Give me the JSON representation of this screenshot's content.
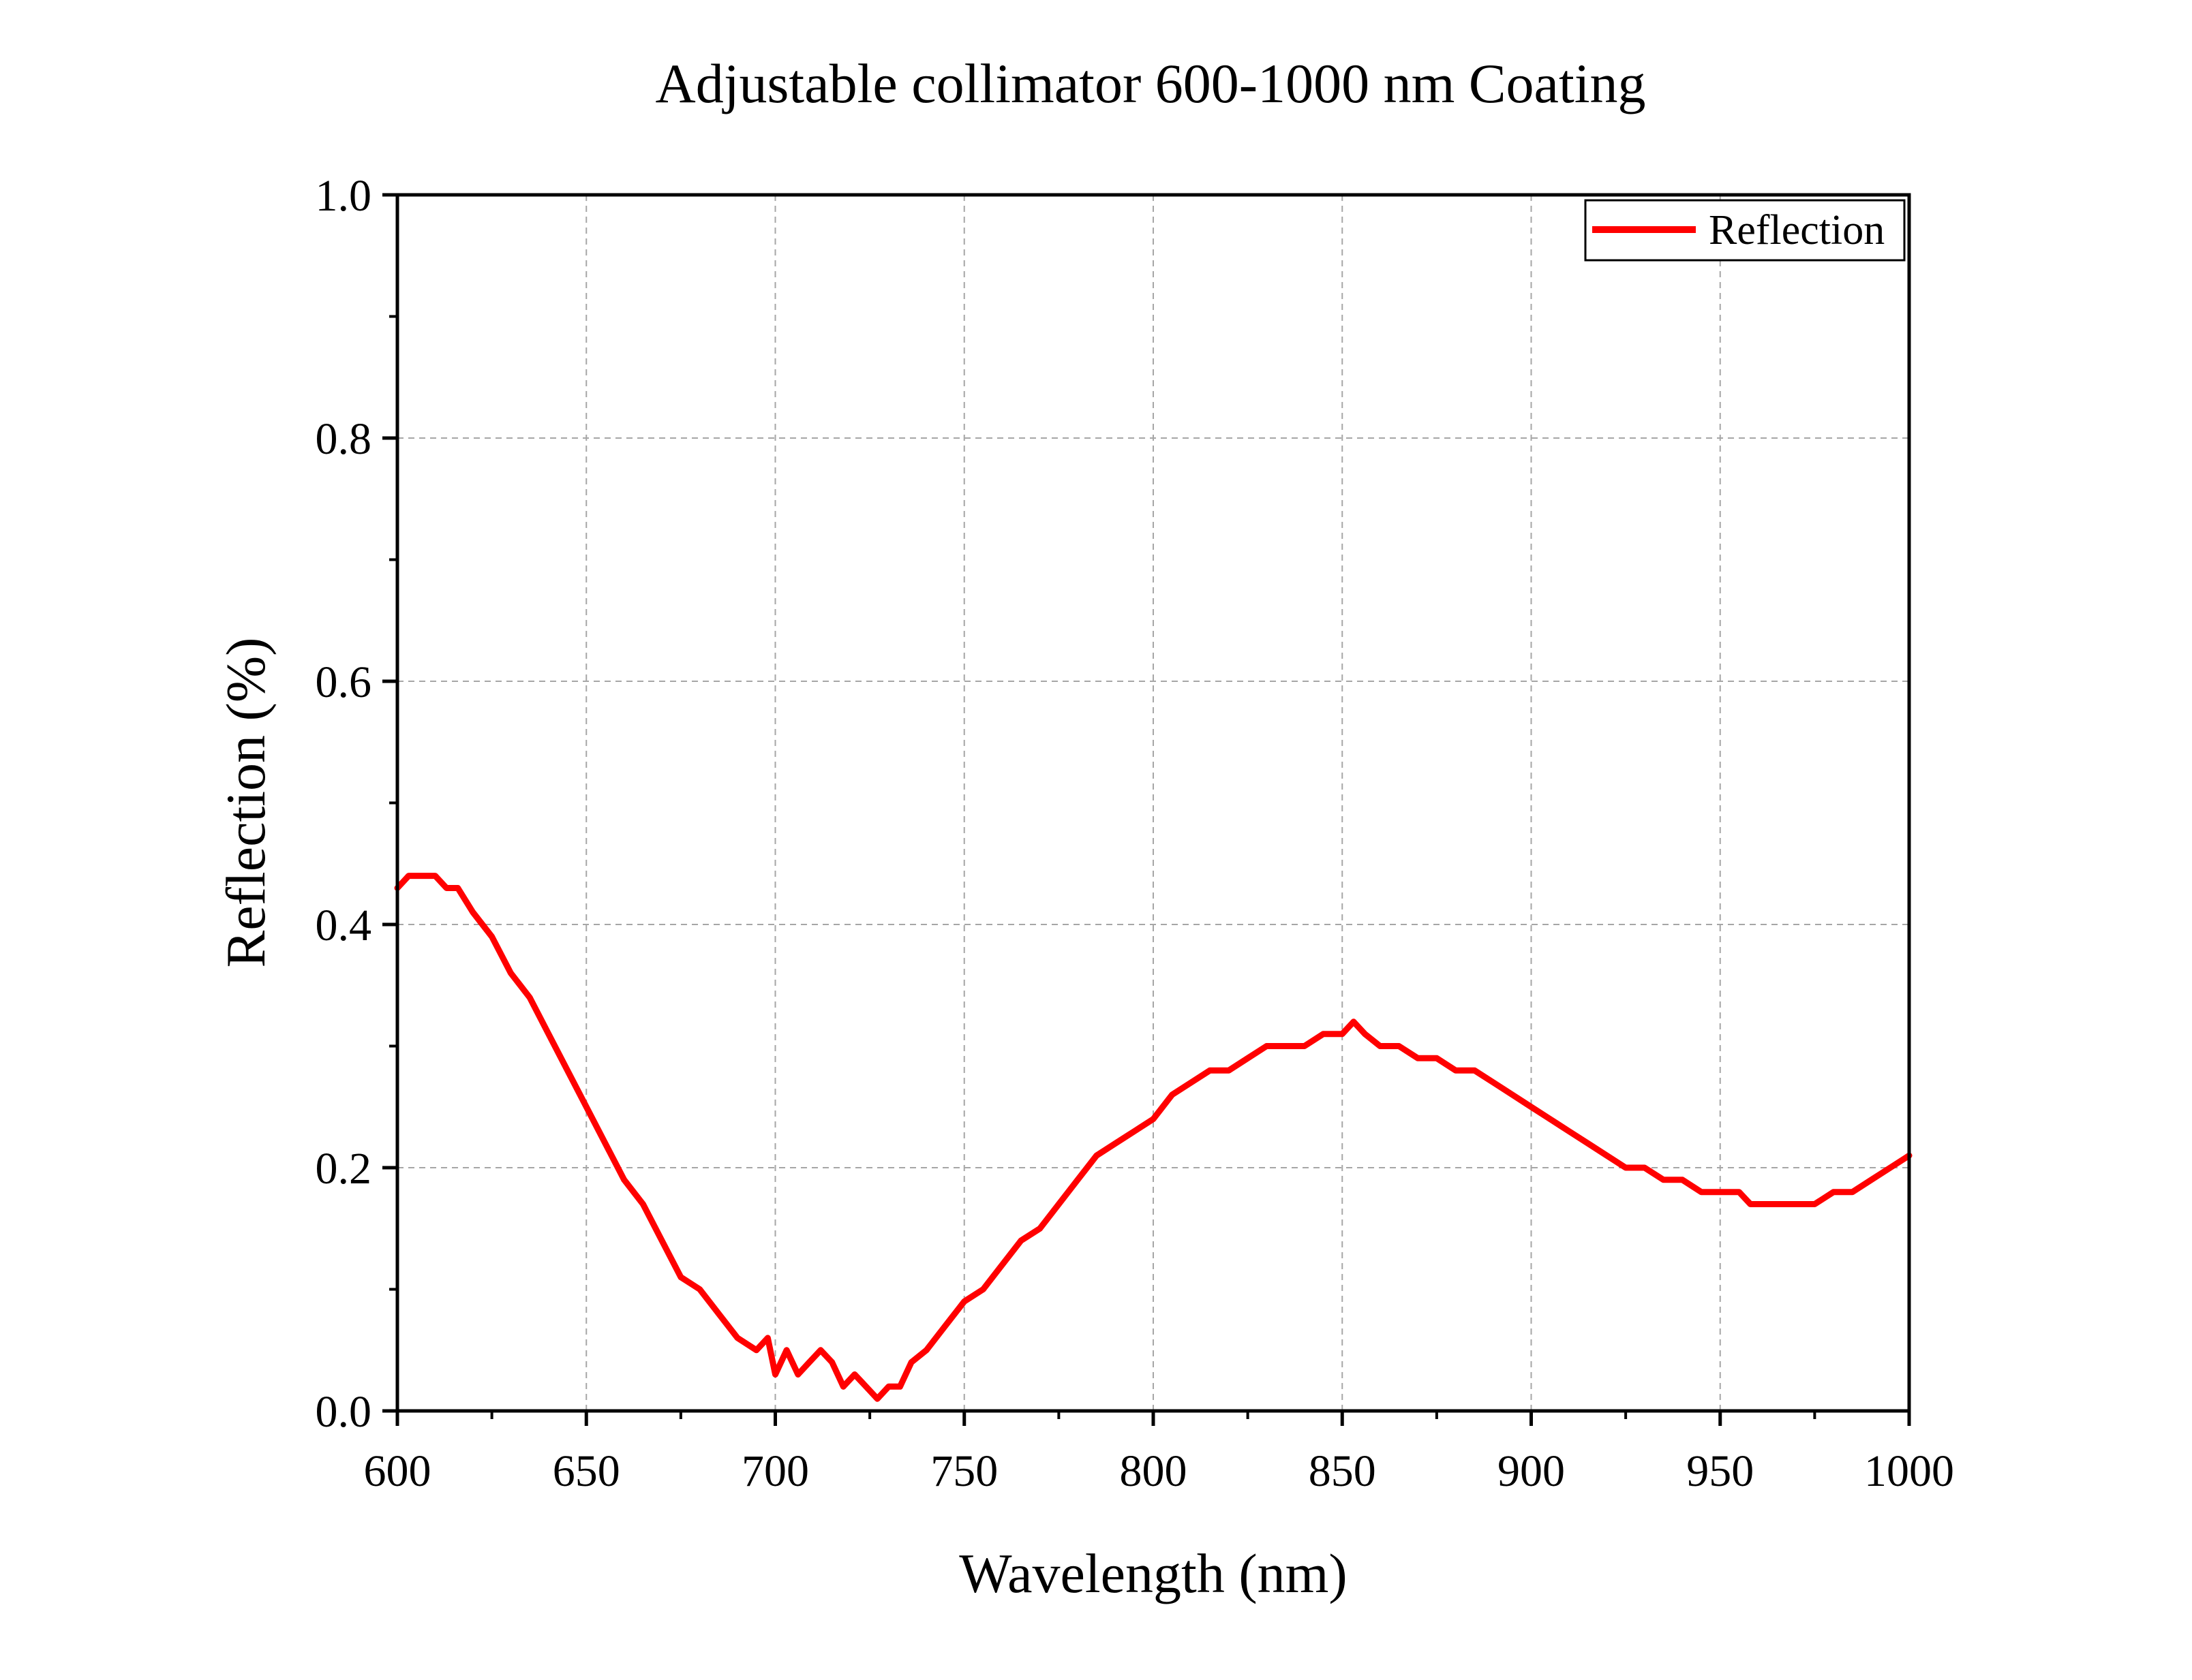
{
  "chart_data": {
    "type": "line",
    "title": "Adjustable collimator 600-1000 nm Coating",
    "xlabel": "Wavelength (nm)",
    "ylabel": "Reflection (%)",
    "xlim": [
      600,
      1000
    ],
    "ylim": [
      0.0,
      1.0
    ],
    "xticks": [
      "600",
      "650",
      "700",
      "750",
      "800",
      "850",
      "900",
      "950",
      "1000"
    ],
    "yticks": [
      "0.0",
      "0.2",
      "0.4",
      "0.6",
      "0.8",
      "1.0"
    ],
    "grid": true,
    "legend_position": "top-right",
    "series": [
      {
        "name": "Reflection",
        "color": "#ff0000",
        "x": [
          600,
          603,
          606,
          610,
          613,
          616,
          620,
          625,
          630,
          635,
          640,
          645,
          650,
          655,
          660,
          665,
          670,
          675,
          680,
          685,
          690,
          695,
          698,
          700,
          703,
          706,
          709,
          712,
          715,
          718,
          721,
          724,
          727,
          730,
          733,
          736,
          740,
          745,
          750,
          755,
          760,
          765,
          770,
          775,
          780,
          785,
          790,
          795,
          800,
          805,
          810,
          815,
          820,
          825,
          830,
          835,
          840,
          845,
          850,
          853,
          856,
          860,
          865,
          870,
          875,
          880,
          885,
          890,
          895,
          900,
          905,
          910,
          915,
          920,
          925,
          930,
          935,
          940,
          945,
          950,
          955,
          958,
          960,
          965,
          970,
          975,
          980,
          985,
          990,
          995,
          1000
        ],
        "y": [
          0.43,
          0.44,
          0.44,
          0.44,
          0.43,
          0.43,
          0.41,
          0.39,
          0.36,
          0.34,
          0.31,
          0.28,
          0.25,
          0.22,
          0.19,
          0.17,
          0.14,
          0.11,
          0.1,
          0.08,
          0.06,
          0.05,
          0.06,
          0.03,
          0.05,
          0.03,
          0.04,
          0.05,
          0.04,
          0.02,
          0.03,
          0.02,
          0.01,
          0.02,
          0.02,
          0.04,
          0.05,
          0.07,
          0.09,
          0.1,
          0.12,
          0.14,
          0.15,
          0.17,
          0.19,
          0.21,
          0.22,
          0.23,
          0.24,
          0.26,
          0.27,
          0.28,
          0.28,
          0.29,
          0.3,
          0.3,
          0.3,
          0.31,
          0.31,
          0.32,
          0.31,
          0.3,
          0.3,
          0.29,
          0.29,
          0.28,
          0.28,
          0.27,
          0.26,
          0.25,
          0.24,
          0.23,
          0.22,
          0.21,
          0.2,
          0.2,
          0.19,
          0.19,
          0.18,
          0.18,
          0.18,
          0.17,
          0.17,
          0.17,
          0.17,
          0.17,
          0.18,
          0.18,
          0.19,
          0.2,
          0.21
        ]
      }
    ]
  }
}
